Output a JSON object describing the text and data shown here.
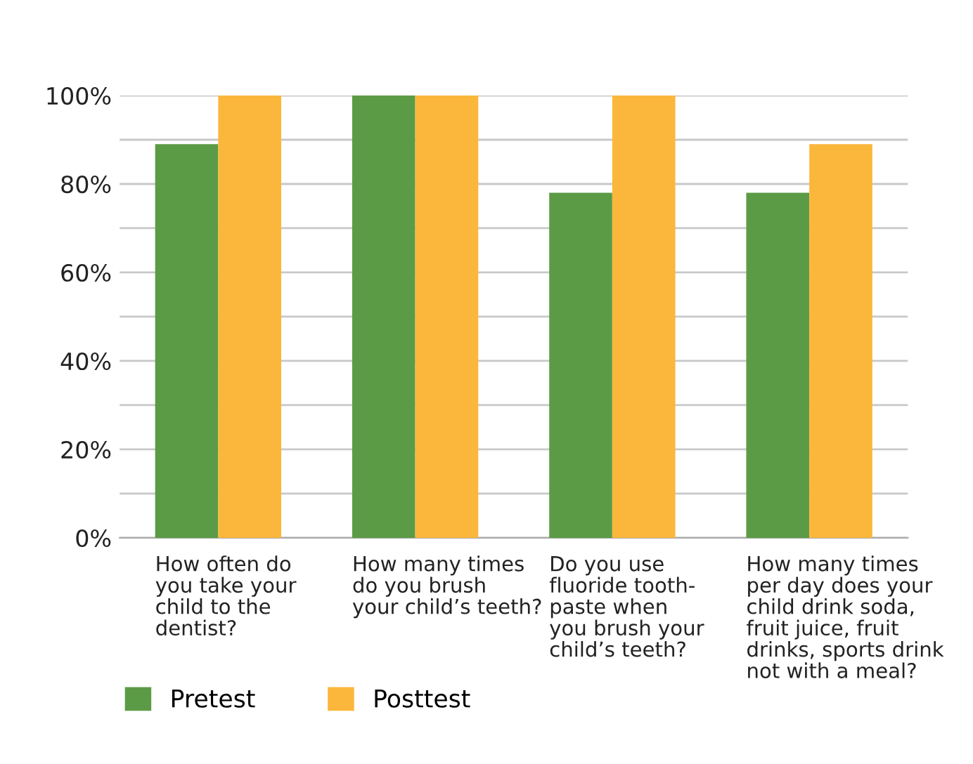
{
  "chart_data": {
    "type": "bar",
    "categories": [
      "How often do\nyou take your\nchild to the\ndentist?",
      "How many times\ndo you brush\nyour child’s teeth?",
      "Do you use\nfluoride tooth-\npaste when\nyou brush your\nchild’s teeth?",
      "How many times\nper day does your\nchild drink soda,\nfruit juice, fruit\ndrinks, sports drink\nnot with a meal?"
    ],
    "series": [
      {
        "name": "Pretest",
        "color": "#5c9b45",
        "values": [
          89,
          100,
          78,
          78
        ]
      },
      {
        "name": "Posttest",
        "color": "#fbb73c",
        "values": [
          100,
          100,
          100,
          89
        ]
      }
    ],
    "ylim": [
      0,
      100
    ],
    "yticks": [
      {
        "value": 0,
        "label": "0%"
      },
      {
        "value": 10,
        "label": null
      },
      {
        "value": 20,
        "label": "20%"
      },
      {
        "value": 30,
        "label": null
      },
      {
        "value": 40,
        "label": "40%"
      },
      {
        "value": 50,
        "label": null
      },
      {
        "value": 60,
        "label": "60%"
      },
      {
        "value": 70,
        "label": null
      },
      {
        "value": 80,
        "label": "80%"
      },
      {
        "value": 90,
        "label": null
      },
      {
        "value": 100,
        "label": "100%"
      }
    ],
    "grid": "y",
    "legend": "bottom left"
  }
}
